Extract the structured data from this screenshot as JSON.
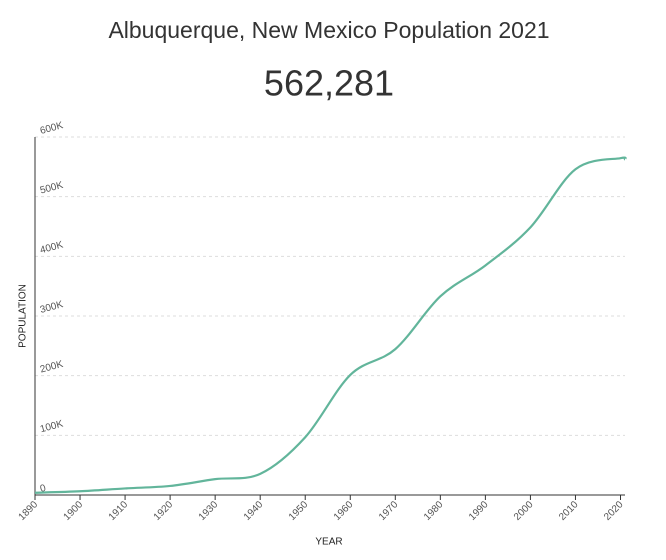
{
  "chart_data": {
    "type": "line",
    "title": "Albuquerque, New Mexico Population 2021",
    "subtitle": "562,281",
    "x_label": "YEAR",
    "y_label": "POPULATION",
    "x": [
      1890,
      1900,
      1910,
      1920,
      1930,
      1940,
      1950,
      1960,
      1970,
      1980,
      1990,
      2000,
      2010,
      2020,
      2021
    ],
    "series": [
      {
        "name": "Population",
        "color": "#62b59b",
        "values": [
          3785,
          6238,
          11020,
          15157,
          26570,
          35449,
          96815,
          201189,
          244501,
          332920,
          384736,
          448607,
          545852,
          564559,
          562281
        ]
      }
    ],
    "xlim": [
      1890,
      2021
    ],
    "xticks": [
      1890,
      1900,
      1910,
      1920,
      1930,
      1940,
      1950,
      1960,
      1970,
      1980,
      1990,
      2000,
      2010,
      2020
    ],
    "ylim": [
      0,
      600000
    ],
    "yticks": [
      0,
      {
        "value": 100000,
        "label": "100K"
      },
      {
        "value": 200000,
        "label": "200K"
      },
      {
        "value": 300000,
        "label": "300K"
      },
      {
        "value": 400000,
        "label": "400K"
      },
      {
        "value": 500000,
        "label": "500K"
      },
      {
        "value": 600000,
        "label": "600K"
      }
    ],
    "grid": true
  }
}
